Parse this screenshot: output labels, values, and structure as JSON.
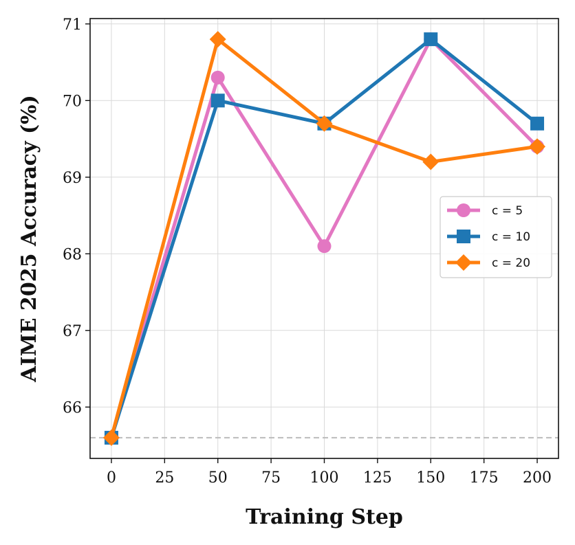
{
  "chart_data": {
    "type": "line",
    "xlabel": "Training Step",
    "ylabel": "AIME 2025 Accuracy (%)",
    "xlim": [
      -10,
      210
    ],
    "ylim": [
      65.33,
      71.07
    ],
    "x_ticks": [
      "0",
      "25",
      "50",
      "75",
      "100",
      "125",
      "150",
      "175",
      "200"
    ],
    "y_ticks": [
      "66",
      "67",
      "68",
      "69",
      "70",
      "71"
    ],
    "grid": true,
    "legend_position": "center-right",
    "baseline": {
      "y": 65.6,
      "style": "dashed",
      "color": "#bbbbbb"
    },
    "x": [
      0,
      50,
      100,
      150,
      200
    ],
    "series": [
      {
        "name": "c = 5",
        "values": [
          65.6,
          70.3,
          68.1,
          70.8,
          69.4
        ],
        "color": "#e377c2",
        "marker": "circle"
      },
      {
        "name": "c = 10",
        "values": [
          65.6,
          70.0,
          69.7,
          70.8,
          69.7
        ],
        "color": "#1f77b4",
        "marker": "square"
      },
      {
        "name": "c = 20",
        "values": [
          65.6,
          70.8,
          69.7,
          69.2,
          69.4
        ],
        "color": "#ff7f0e",
        "marker": "diamond"
      }
    ]
  }
}
